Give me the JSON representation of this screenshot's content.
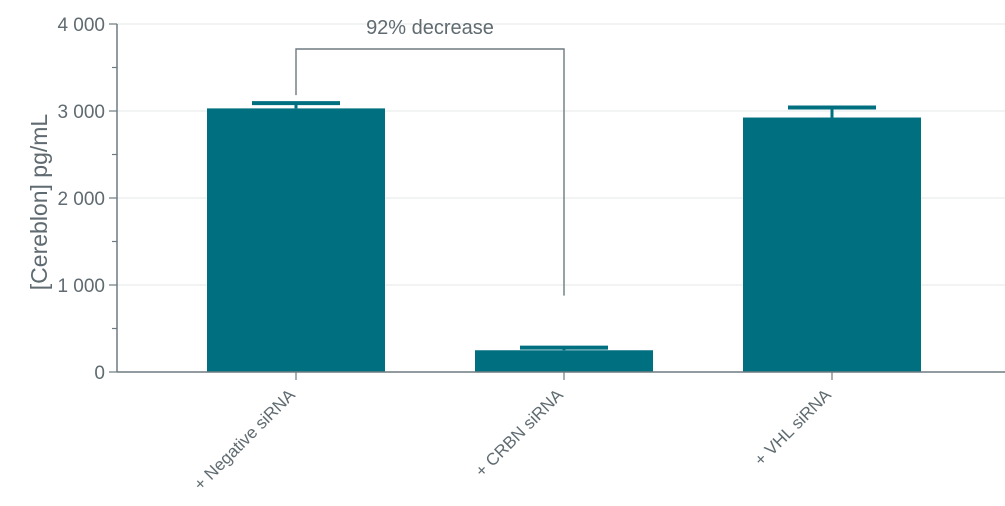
{
  "chart_data": {
    "type": "bar",
    "categories": [
      "+ Negative siRNA",
      "+ CRBN siRNA",
      "+ VHL siRNA"
    ],
    "values": [
      3030,
      250,
      2925
    ],
    "error_upper": [
      3090,
      280,
      3040
    ],
    "ylabel": "[Cereblon] pg/mL",
    "ylim": [
      0,
      4000
    ],
    "yticks": [
      0,
      1000,
      2000,
      3000,
      4000
    ],
    "ytick_labels": [
      "0",
      "1 000",
      "2 000",
      "3 000",
      "4 000"
    ],
    "grid": true,
    "bar_color": "#007080",
    "annotation": {
      "text": "92% decrease",
      "from_category": 0,
      "to_category": 1
    }
  }
}
